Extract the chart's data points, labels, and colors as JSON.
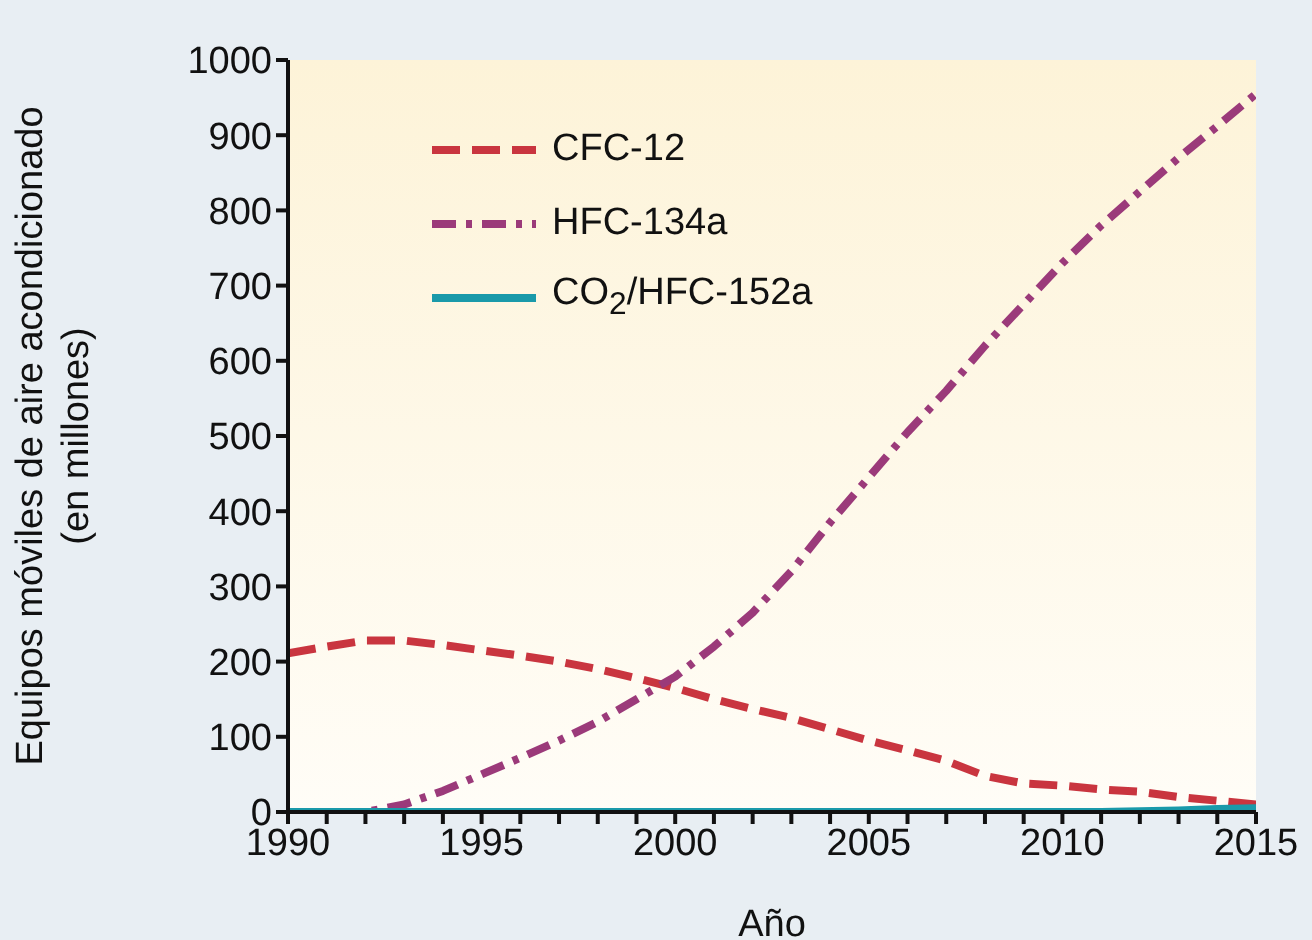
{
  "chart_data": {
    "type": "line",
    "xlabel": "Año",
    "ylabel": "Equipos móviles de aire acondicionado\n(en millones)",
    "x": [
      1990,
      1991,
      1992,
      1993,
      1994,
      1995,
      1996,
      1997,
      1998,
      1999,
      2000,
      2001,
      2002,
      2003,
      2004,
      2005,
      2006,
      2007,
      2008,
      2009,
      2010,
      2011,
      2012,
      2013,
      2014,
      2015
    ],
    "series": [
      {
        "name": "CFC-12",
        "color": "#c9353f",
        "line_style": "dashed",
        "values": [
          211,
          220,
          228,
          228,
          222,
          215,
          208,
          200,
          190,
          178,
          165,
          150,
          137,
          125,
          110,
          95,
          82,
          68,
          48,
          38,
          35,
          30,
          27,
          20,
          15,
          10
        ]
      },
      {
        "name": "HFC-134a",
        "color": "#9b3a7a",
        "line_style": "dashdot",
        "values": [
          0,
          0,
          0,
          10,
          28,
          50,
          72,
          95,
          120,
          150,
          180,
          220,
          265,
          320,
          385,
          445,
          505,
          560,
          620,
          675,
          730,
          780,
          825,
          870,
          912,
          955
        ]
      },
      {
        "name": "CO$_{2}$/HFC-152a",
        "color": "#1a9aaa",
        "line_style": "solid",
        "values": [
          0,
          0,
          0,
          0,
          0,
          0,
          0,
          0,
          0,
          0,
          0,
          0,
          0,
          0,
          0,
          0,
          0,
          0,
          0,
          0,
          0,
          0,
          1,
          2,
          4,
          5
        ]
      }
    ],
    "xlim": [
      1990,
      2015
    ],
    "xticks": [
      1990,
      {
        "value": 1991,
        "label": null
      },
      {
        "value": 1992,
        "label": null
      },
      {
        "value": 1993,
        "label": null
      },
      {
        "value": 1994,
        "label": null
      },
      1995,
      {
        "value": 1996,
        "label": null
      },
      {
        "value": 1997,
        "label": null
      },
      {
        "value": 1998,
        "label": null
      },
      {
        "value": 1999,
        "label": null
      },
      2000,
      {
        "value": 2001,
        "label": null
      },
      {
        "value": 2002,
        "label": null
      },
      {
        "value": 2003,
        "label": null
      },
      {
        "value": 2004,
        "label": null
      },
      2005,
      {
        "value": 2006,
        "label": null
      },
      {
        "value": 2007,
        "label": null
      },
      {
        "value": 2008,
        "label": null
      },
      {
        "value": 2009,
        "label": null
      },
      2010,
      {
        "value": 2011,
        "label": null
      },
      {
        "value": 2012,
        "label": null
      },
      {
        "value": 2013,
        "label": null
      },
      {
        "value": 2014,
        "label": null
      },
      2015
    ],
    "ylim": [
      0,
      1000
    ],
    "yticks": [
      0,
      100,
      200,
      300,
      400,
      500,
      600,
      700,
      800,
      900,
      1000
    ],
    "grid": false,
    "legend": "top left",
    "marker": "none"
  }
}
